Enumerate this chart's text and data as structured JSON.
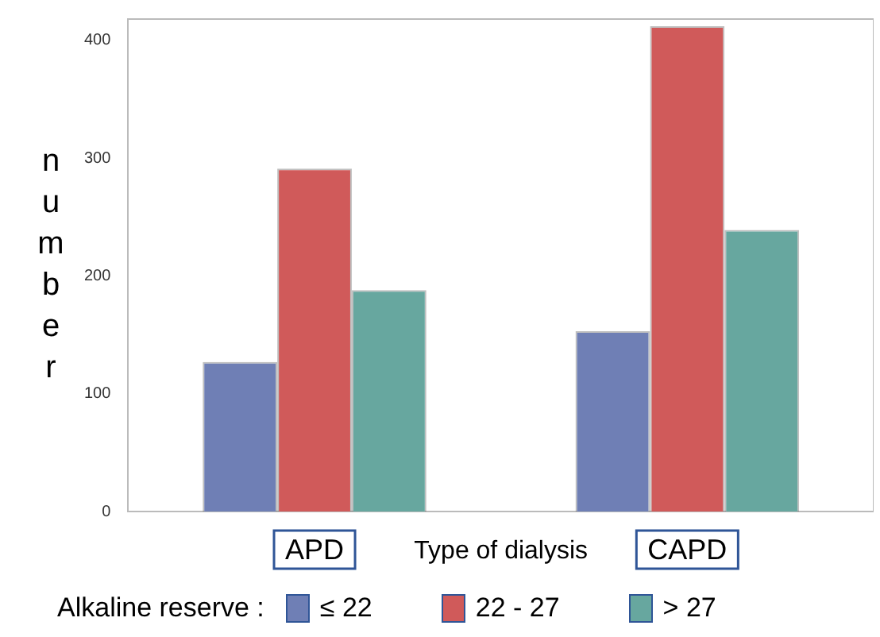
{
  "chart_data": {
    "type": "bar",
    "xlabel": "Type of dialysis",
    "ylabel": "number",
    "legend_title": "Alkaline reserve :",
    "categories": [
      "APD",
      "CAPD"
    ],
    "series": [
      {
        "name": "≤ 22",
        "color": "#6f7fb5",
        "values": [
          127,
          153
        ]
      },
      {
        "name": "22 - 27",
        "color": "#d05a5a",
        "values": [
          291,
          412
        ]
      },
      {
        "name": "> 27",
        "color": "#67a79f",
        "values": [
          188,
          239
        ]
      }
    ],
    "ylim": [
      0,
      418
    ],
    "yticks": [
      0,
      100,
      200,
      300,
      400
    ],
    "grid": false,
    "legend": "bottom"
  }
}
